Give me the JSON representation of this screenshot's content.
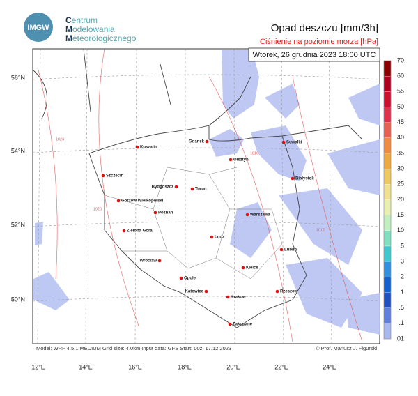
{
  "header": {
    "logo": "IMGW",
    "org": [
      "Centrum",
      "Modelowania",
      "Meteorologicznego"
    ],
    "title": "Opad deszczu [mm/3h]",
    "subtitle": "Ciśnienie na poziomie morza [hPa]",
    "date": "Wtorek, 26 grudnia 2023 18:00 UTC"
  },
  "map": {
    "cities": [
      "Gdansk",
      "Koszalin",
      "Szczecin",
      "Olsztyn",
      "Suwalki",
      "Bialystok",
      "Bydgoszcz",
      "Torun",
      "Gorzow Wielkopolski",
      "Poznan",
      "Warszawa",
      "Zielona Gora",
      "Lodz",
      "Lublin",
      "Wroclaw",
      "Kielce",
      "Opole",
      "Katowice",
      "Rzeszow",
      "Krakow",
      "Zakopane"
    ],
    "lon_labels": [
      "12°E",
      "14°E",
      "16°E",
      "18°E",
      "20°E",
      "22°E",
      "24°E"
    ],
    "lat_labels": [
      "56°N",
      "54°N",
      "52°N",
      "50°N"
    ],
    "isobar_labels": [
      "1024",
      "1020",
      "1016",
      "1012"
    ]
  },
  "colorbar": {
    "labels": [
      "70",
      "60",
      "55",
      "50",
      "45",
      "40",
      "35",
      "30",
      "25",
      "20",
      "15",
      "10",
      "5",
      "3",
      "2",
      "1",
      ".5",
      ".1",
      ".01"
    ],
    "colors": [
      "#8b0000",
      "#b00020",
      "#cc1030",
      "#e0304a",
      "#e86050",
      "#f08c40",
      "#f0a840",
      "#f0c860",
      "#f0e090",
      "#e8f0b0",
      "#c0f0c0",
      "#80e0c0",
      "#40c8d0",
      "#3090e0",
      "#1060d0",
      "#2050c0",
      "#6080e0",
      "#a8b8f0"
    ]
  },
  "footer": {
    "info": "Model: WRF 4.5.1 MEDIUM    Grid size: 4.0km    Input data: GFS    Start: 00z, 17.12.2023",
    "credit": "© Prof. Mariusz J. Figurski"
  }
}
